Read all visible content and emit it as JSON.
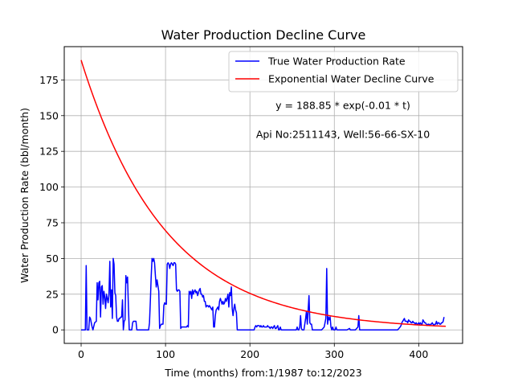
{
  "chart_data": {
    "type": "line",
    "title": "Water Production Decline Curve",
    "xlabel": "Time (months) from:1/1987 to:12/2023",
    "ylabel": "Water Production Rate (bbl/month)",
    "xlim": [
      -20,
      452
    ],
    "ylim": [
      -9.45,
      198.3
    ],
    "xticks": [
      0,
      100,
      200,
      300,
      400
    ],
    "yticks": [
      0,
      25,
      50,
      75,
      100,
      125,
      150,
      175
    ],
    "grid": true,
    "legend_position": "top-right",
    "annotations": [
      "y = 188.85 * exp(-0.01 * t)",
      "Api No:2511143, Well:56-66-SX-10"
    ],
    "series": [
      {
        "name": "True Water Production Rate",
        "color": "#0000ff",
        "points": [
          [
            0,
            0
          ],
          [
            5,
            0
          ],
          [
            6,
            45
          ],
          [
            7,
            0
          ],
          [
            9,
            0
          ],
          [
            10,
            9
          ],
          [
            11,
            8
          ],
          [
            12,
            5
          ],
          [
            13,
            2
          ],
          [
            14,
            0
          ],
          [
            16,
            5
          ],
          [
            18,
            6
          ],
          [
            19,
            33
          ],
          [
            20,
            21
          ],
          [
            21,
            33
          ],
          [
            22,
            34
          ],
          [
            23,
            9
          ],
          [
            24,
            30
          ],
          [
            25,
            31
          ],
          [
            26,
            18
          ],
          [
            27,
            27
          ],
          [
            28,
            23
          ],
          [
            29,
            15
          ],
          [
            30,
            25
          ],
          [
            31,
            22
          ],
          [
            32,
            19
          ],
          [
            33,
            25
          ],
          [
            34,
            48
          ],
          [
            35,
            16
          ],
          [
            36,
            28
          ],
          [
            37,
            8
          ],
          [
            38,
            50
          ],
          [
            39,
            46
          ],
          [
            40,
            26
          ],
          [
            41,
            24
          ],
          [
            42,
            9
          ],
          [
            43,
            6
          ],
          [
            44,
            6
          ],
          [
            45,
            8
          ],
          [
            46,
            8
          ],
          [
            47,
            9
          ],
          [
            48,
            9
          ],
          [
            49,
            21
          ],
          [
            50,
            0
          ],
          [
            51,
            6
          ],
          [
            52,
            7
          ],
          [
            53,
            38
          ],
          [
            54,
            33
          ],
          [
            55,
            37
          ],
          [
            56,
            17
          ],
          [
            57,
            0
          ],
          [
            58,
            0
          ],
          [
            59,
            0
          ],
          [
            60,
            0
          ],
          [
            61,
            5
          ],
          [
            62,
            6
          ],
          [
            63,
            6
          ],
          [
            64,
            6
          ],
          [
            65,
            6
          ],
          [
            66,
            0
          ],
          [
            67,
            0
          ],
          [
            68,
            0
          ],
          [
            75,
            0
          ],
          [
            80,
            0
          ],
          [
            81,
            5
          ],
          [
            82,
            20
          ],
          [
            83,
            37
          ],
          [
            84,
            50
          ],
          [
            85,
            48
          ],
          [
            86,
            50
          ],
          [
            87,
            47
          ],
          [
            88,
            38
          ],
          [
            89,
            30
          ],
          [
            90,
            35
          ],
          [
            91,
            31
          ],
          [
            92,
            27
          ],
          [
            93,
            1
          ],
          [
            94,
            3
          ],
          [
            95,
            4
          ],
          [
            96,
            4
          ],
          [
            97,
            4
          ],
          [
            98,
            17
          ],
          [
            99,
            19
          ],
          [
            100,
            18
          ],
          [
            101,
            18
          ],
          [
            102,
            46
          ],
          [
            103,
            47
          ],
          [
            104,
            46
          ],
          [
            105,
            43
          ],
          [
            106,
            46
          ],
          [
            107,
            47
          ],
          [
            108,
            46
          ],
          [
            109,
            45
          ],
          [
            110,
            47
          ],
          [
            111,
            47
          ],
          [
            112,
            46
          ],
          [
            113,
            28
          ],
          [
            114,
            27
          ],
          [
            115,
            28
          ],
          [
            116,
            28
          ],
          [
            117,
            27
          ],
          [
            118,
            1
          ],
          [
            119,
            2
          ],
          [
            120,
            2
          ],
          [
            125,
            2
          ],
          [
            126,
            3
          ],
          [
            127,
            2
          ],
          [
            128,
            27
          ],
          [
            129,
            25
          ],
          [
            130,
            27
          ],
          [
            131,
            22
          ],
          [
            132,
            28
          ],
          [
            133,
            25
          ],
          [
            134,
            27
          ],
          [
            135,
            28
          ],
          [
            136,
            26
          ],
          [
            137,
            27
          ],
          [
            138,
            24
          ],
          [
            139,
            26
          ],
          [
            140,
            28
          ],
          [
            141,
            29
          ],
          [
            142,
            25
          ],
          [
            143,
            25
          ],
          [
            144,
            23
          ],
          [
            145,
            24
          ],
          [
            146,
            20
          ],
          [
            147,
            20
          ],
          [
            148,
            16
          ],
          [
            149,
            17
          ],
          [
            150,
            17
          ],
          [
            151,
            16
          ],
          [
            152,
            17
          ],
          [
            153,
            16
          ],
          [
            154,
            15
          ],
          [
            155,
            14
          ],
          [
            156,
            16
          ],
          [
            157,
            2
          ],
          [
            158,
            2
          ],
          [
            159,
            10
          ],
          [
            160,
            14
          ],
          [
            161,
            15
          ],
          [
            162,
            16
          ],
          [
            163,
            14
          ],
          [
            164,
            20
          ],
          [
            165,
            22
          ],
          [
            166,
            20
          ],
          [
            167,
            18
          ],
          [
            168,
            20
          ],
          [
            169,
            18
          ],
          [
            170,
            19
          ],
          [
            171,
            22
          ],
          [
            172,
            20
          ],
          [
            173,
            22
          ],
          [
            174,
            25
          ],
          [
            175,
            16
          ],
          [
            176,
            26
          ],
          [
            177,
            24
          ],
          [
            178,
            30
          ],
          [
            179,
            15
          ],
          [
            180,
            10
          ],
          [
            181,
            15
          ],
          [
            182,
            18
          ],
          [
            183,
            14
          ],
          [
            184,
            12
          ],
          [
            185,
            0
          ],
          [
            186,
            0
          ],
          [
            190,
            0
          ],
          [
            200,
            0
          ],
          [
            205,
            0
          ],
          [
            206,
            2
          ],
          [
            207,
            3
          ],
          [
            208,
            2
          ],
          [
            209,
            3
          ],
          [
            210,
            3
          ],
          [
            211,
            3
          ],
          [
            212,
            2
          ],
          [
            213,
            3
          ],
          [
            214,
            2
          ],
          [
            215,
            2
          ],
          [
            216,
            3
          ],
          [
            217,
            2
          ],
          [
            218,
            2
          ],
          [
            219,
            2
          ],
          [
            220,
            2
          ],
          [
            221,
            3
          ],
          [
            222,
            2
          ],
          [
            223,
            2
          ],
          [
            224,
            1
          ],
          [
            225,
            2
          ],
          [
            226,
            2
          ],
          [
            227,
            1
          ],
          [
            228,
            2
          ],
          [
            229,
            3
          ],
          [
            230,
            1
          ],
          [
            231,
            1
          ],
          [
            232,
            2
          ],
          [
            233,
            3
          ],
          [
            234,
            0
          ],
          [
            235,
            0
          ],
          [
            236,
            2
          ],
          [
            237,
            0
          ],
          [
            240,
            0
          ],
          [
            250,
            0
          ],
          [
            255,
            0
          ],
          [
            256,
            2
          ],
          [
            257,
            0
          ],
          [
            258,
            0
          ],
          [
            259,
            2
          ],
          [
            260,
            10
          ],
          [
            261,
            1
          ],
          [
            262,
            0
          ],
          [
            264,
            0
          ],
          [
            265,
            4
          ],
          [
            266,
            8
          ],
          [
            267,
            13
          ],
          [
            268,
            4
          ],
          [
            269,
            14
          ],
          [
            270,
            24
          ],
          [
            271,
            5
          ],
          [
            272,
            4
          ],
          [
            273,
            4
          ],
          [
            274,
            0
          ],
          [
            275,
            0
          ],
          [
            280,
            0
          ],
          [
            285,
            0
          ],
          [
            288,
            2
          ],
          [
            289,
            5
          ],
          [
            290,
            8
          ],
          [
            291,
            43
          ],
          [
            292,
            4
          ],
          [
            293,
            9
          ],
          [
            294,
            7
          ],
          [
            295,
            9
          ],
          [
            296,
            2
          ],
          [
            297,
            0
          ],
          [
            298,
            2
          ],
          [
            299,
            0
          ],
          [
            300,
            0
          ],
          [
            301,
            0
          ],
          [
            302,
            2
          ],
          [
            303,
            0
          ],
          [
            304,
            0
          ],
          [
            305,
            0
          ],
          [
            306,
            0
          ],
          [
            307,
            0
          ],
          [
            310,
            0
          ],
          [
            315,
            0
          ],
          [
            318,
            1
          ],
          [
            319,
            0
          ],
          [
            320,
            0
          ],
          [
            325,
            0
          ],
          [
            328,
            2
          ],
          [
            329,
            10
          ],
          [
            330,
            0
          ],
          [
            335,
            0
          ],
          [
            340,
            0
          ],
          [
            350,
            0
          ],
          [
            360,
            0
          ],
          [
            370,
            0
          ],
          [
            375,
            0
          ],
          [
            378,
            2
          ],
          [
            379,
            3
          ],
          [
            380,
            5
          ],
          [
            381,
            6
          ],
          [
            382,
            7
          ],
          [
            383,
            8
          ],
          [
            384,
            6
          ],
          [
            385,
            6
          ],
          [
            386,
            6
          ],
          [
            387,
            5
          ],
          [
            388,
            7
          ],
          [
            389,
            6
          ],
          [
            390,
            6
          ],
          [
            391,
            5
          ],
          [
            392,
            5
          ],
          [
            393,
            6
          ],
          [
            394,
            5
          ],
          [
            395,
            5
          ],
          [
            396,
            4
          ],
          [
            397,
            5
          ],
          [
            398,
            4
          ],
          [
            399,
            4
          ],
          [
            400,
            5
          ],
          [
            401,
            4
          ],
          [
            402,
            5
          ],
          [
            403,
            4
          ],
          [
            404,
            4
          ],
          [
            405,
            7
          ],
          [
            406,
            6
          ],
          [
            407,
            5
          ],
          [
            408,
            5
          ],
          [
            409,
            4
          ],
          [
            410,
            3
          ],
          [
            411,
            4
          ],
          [
            412,
            4
          ],
          [
            413,
            3
          ],
          [
            414,
            4
          ],
          [
            415,
            4
          ],
          [
            416,
            5
          ],
          [
            417,
            4
          ],
          [
            418,
            3
          ],
          [
            419,
            4
          ],
          [
            420,
            4
          ],
          [
            421,
            6
          ],
          [
            422,
            4
          ],
          [
            423,
            5
          ],
          [
            424,
            5
          ],
          [
            425,
            4
          ],
          [
            426,
            4
          ],
          [
            427,
            5
          ],
          [
            428,
            5
          ],
          [
            429,
            6
          ],
          [
            430,
            9
          ]
        ]
      },
      {
        "name": "Exponential Water Decline Curve",
        "color": "#ff0000",
        "function": "y = 188.85 * exp(-0.01 * t)",
        "a": 188.85,
        "b": 0.01,
        "x_range": [
          0,
          432
        ]
      }
    ]
  }
}
